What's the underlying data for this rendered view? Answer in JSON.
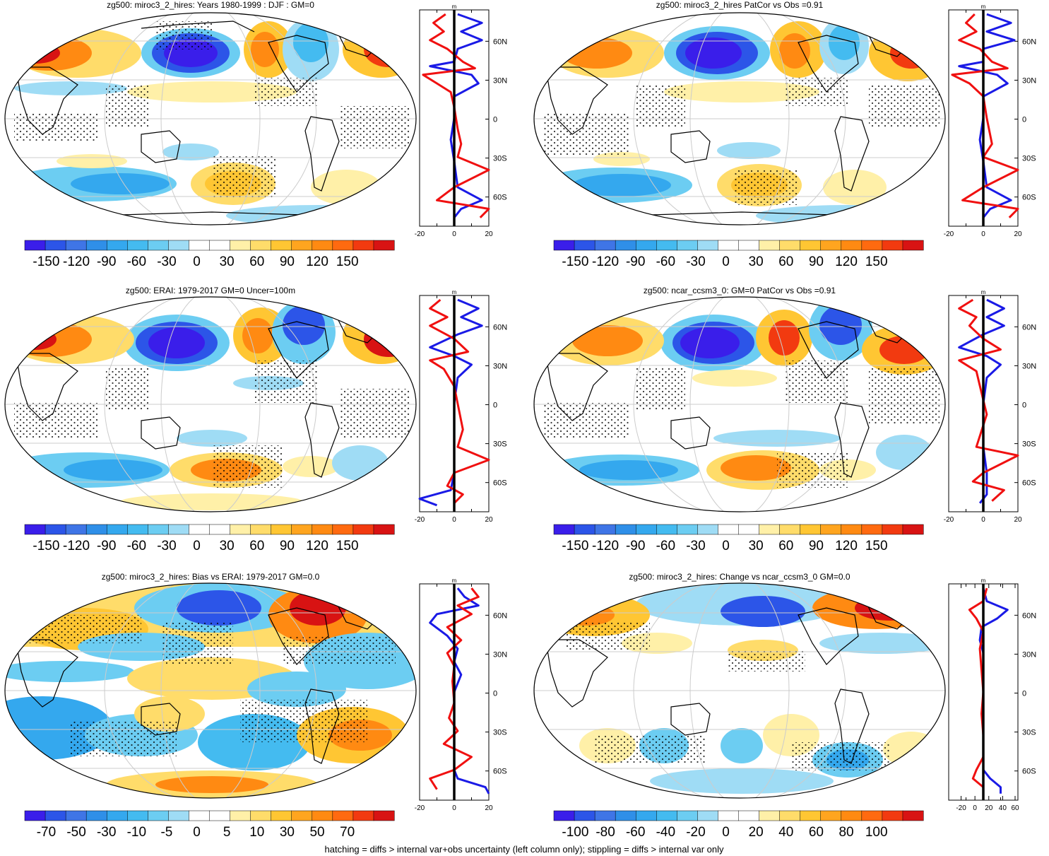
{
  "palette": [
    "#3a1eea",
    "#2c55e8",
    "#3f75e6",
    "#2f8fe8",
    "#34a8ee",
    "#44bbf0",
    "#6ccdf2",
    "#9fdcf5",
    "#ffffff",
    "#ffffff",
    "#fff0a8",
    "#ffdc6a",
    "#ffc633",
    "#ffa51f",
    "#ff8a12",
    "#ff6a10",
    "#f23a10",
    "#d81313"
  ],
  "profile_axis_unit": "m",
  "lat_labels": [
    "60N",
    "30N",
    "0",
    "30S",
    "60S"
  ],
  "caption": "hatching = diffs > internal var+obs uncertainty (left column only); stippling = diffs > internal var only",
  "panels": [
    {
      "title": "zg500: miroc3_2_hires: Years 1980-1999 : DJF : GM=0",
      "colorbar_labels": [
        "-150",
        "-120",
        "-90",
        "-60",
        "-30",
        "0",
        "30",
        "60",
        "90",
        "120",
        "150"
      ],
      "profile_ticks": [
        "-20",
        "0",
        "20"
      ]
    },
    {
      "title": "zg500: miroc3_2_hires PatCor vs Obs =0.91",
      "colorbar_labels": [
        "-150",
        "-120",
        "-90",
        "-60",
        "-30",
        "0",
        "30",
        "60",
        "90",
        "120",
        "150"
      ],
      "profile_ticks": [
        "-20",
        "0",
        "20"
      ]
    },
    {
      "title": "zg500: ERAI: 1979-2017 GM=0 Uncer=100m",
      "colorbar_labels": [
        "-150",
        "-120",
        "-90",
        "-60",
        "-30",
        "0",
        "30",
        "60",
        "90",
        "120",
        "150"
      ],
      "profile_ticks": [
        "-20",
        "0",
        "20"
      ]
    },
    {
      "title": "zg500: ncar_ccsm3_0: GM=0 PatCor vs Obs =0.91",
      "colorbar_labels": [
        "-150",
        "-120",
        "-90",
        "-60",
        "-30",
        "0",
        "30",
        "60",
        "90",
        "120",
        "150"
      ],
      "profile_ticks": [
        "-20",
        "0",
        "20"
      ]
    },
    {
      "title": "zg500: miroc3_2_hires: Bias vs ERAI: 1979-2017 GM=0.0",
      "colorbar_labels": [
        "-70",
        "-50",
        "-30",
        "-10",
        "-5",
        "0",
        "5",
        "10",
        "30",
        "50",
        "70"
      ],
      "profile_ticks": [
        "-20",
        "0",
        "20"
      ]
    },
    {
      "title": "zg500: miroc3_2_hires: Change vs ncar_ccsm3_0 GM=0.0",
      "colorbar_labels": [
        "-100",
        "-80",
        "-60",
        "-40",
        "-20",
        "0",
        "20",
        "40",
        "60",
        "80",
        "100"
      ],
      "profile_ticks": [
        "-20",
        "0",
        "20",
        "40",
        "60"
      ]
    }
  ]
}
